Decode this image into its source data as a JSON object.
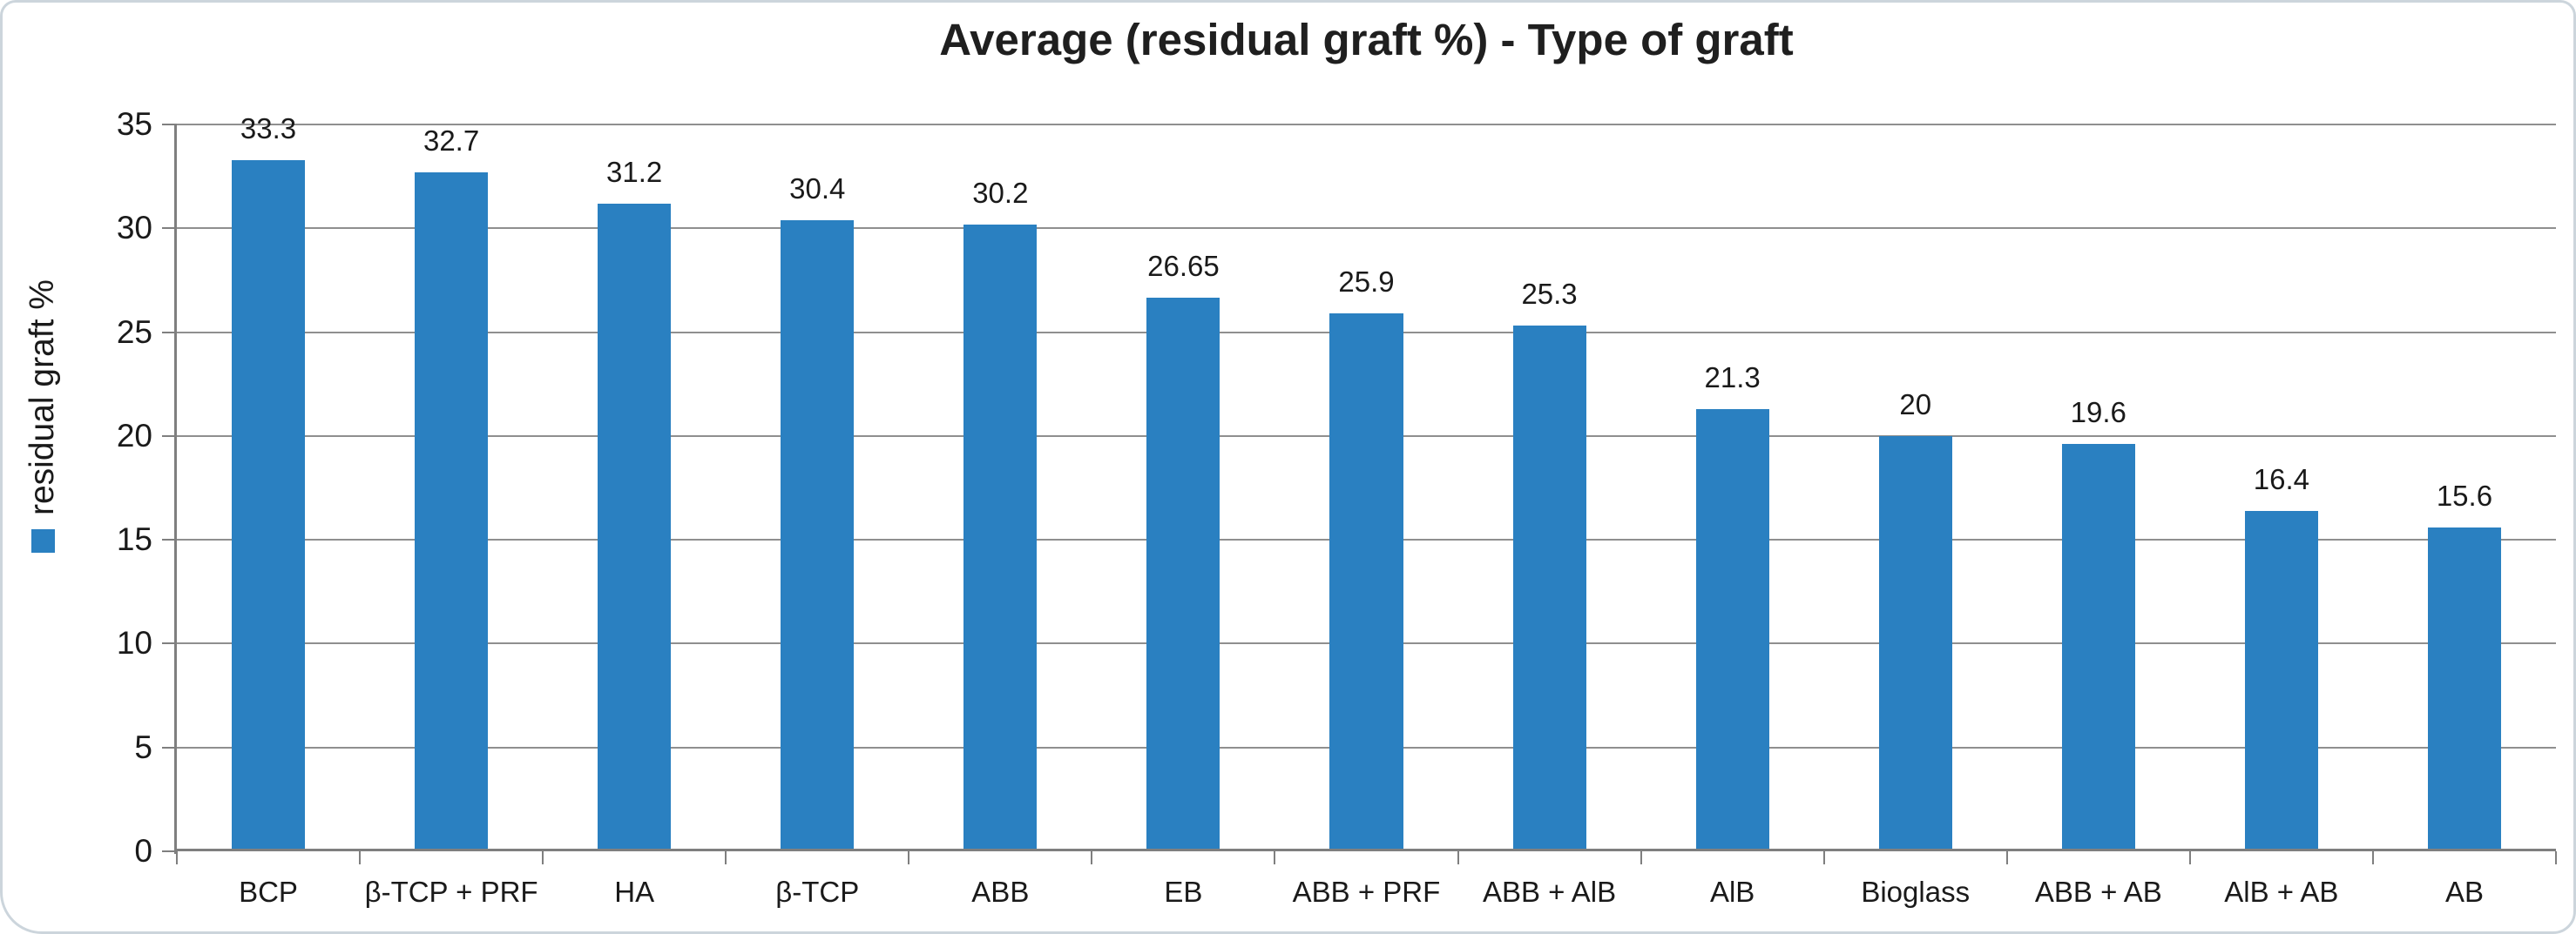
{
  "chart_data": {
    "type": "bar",
    "title": "Average (residual graft %) - Type of graft",
    "ylabel": "residual graft %",
    "legend": {
      "label": "residual graft %",
      "position": "left-rotated",
      "marker": "square"
    },
    "categories": [
      "BCP",
      "β-TCP + PRF",
      "HA",
      "β-TCP",
      "ABB",
      "EB",
      "ABB + PRF",
      "ABB + AlB",
      "AlB",
      "Bioglass",
      "ABB + AB",
      "AlB + AB",
      "AB"
    ],
    "values": [
      33.3,
      32.7,
      31.2,
      30.4,
      30.2,
      26.65,
      25.9,
      25.3,
      21.3,
      20,
      19.6,
      16.4,
      15.6
    ],
    "value_labels": [
      "33.3",
      "32.7",
      "31.2",
      "30.4",
      "30.2",
      "26.65",
      "25.9",
      "25.3",
      "21.3",
      "20",
      "19.6",
      "16.4",
      "15.6"
    ],
    "ylim": [
      0,
      35
    ],
    "yticks": [
      0,
      5,
      10,
      15,
      20,
      25,
      30,
      35
    ],
    "grid": true,
    "colors": {
      "bar": "#2A80C1",
      "gridline": "#8F8F8F",
      "axis": "#7F7F7F",
      "text": "#1A1A1A",
      "title": "#1F1F1F",
      "frame_border": "#CCD5DC"
    }
  }
}
